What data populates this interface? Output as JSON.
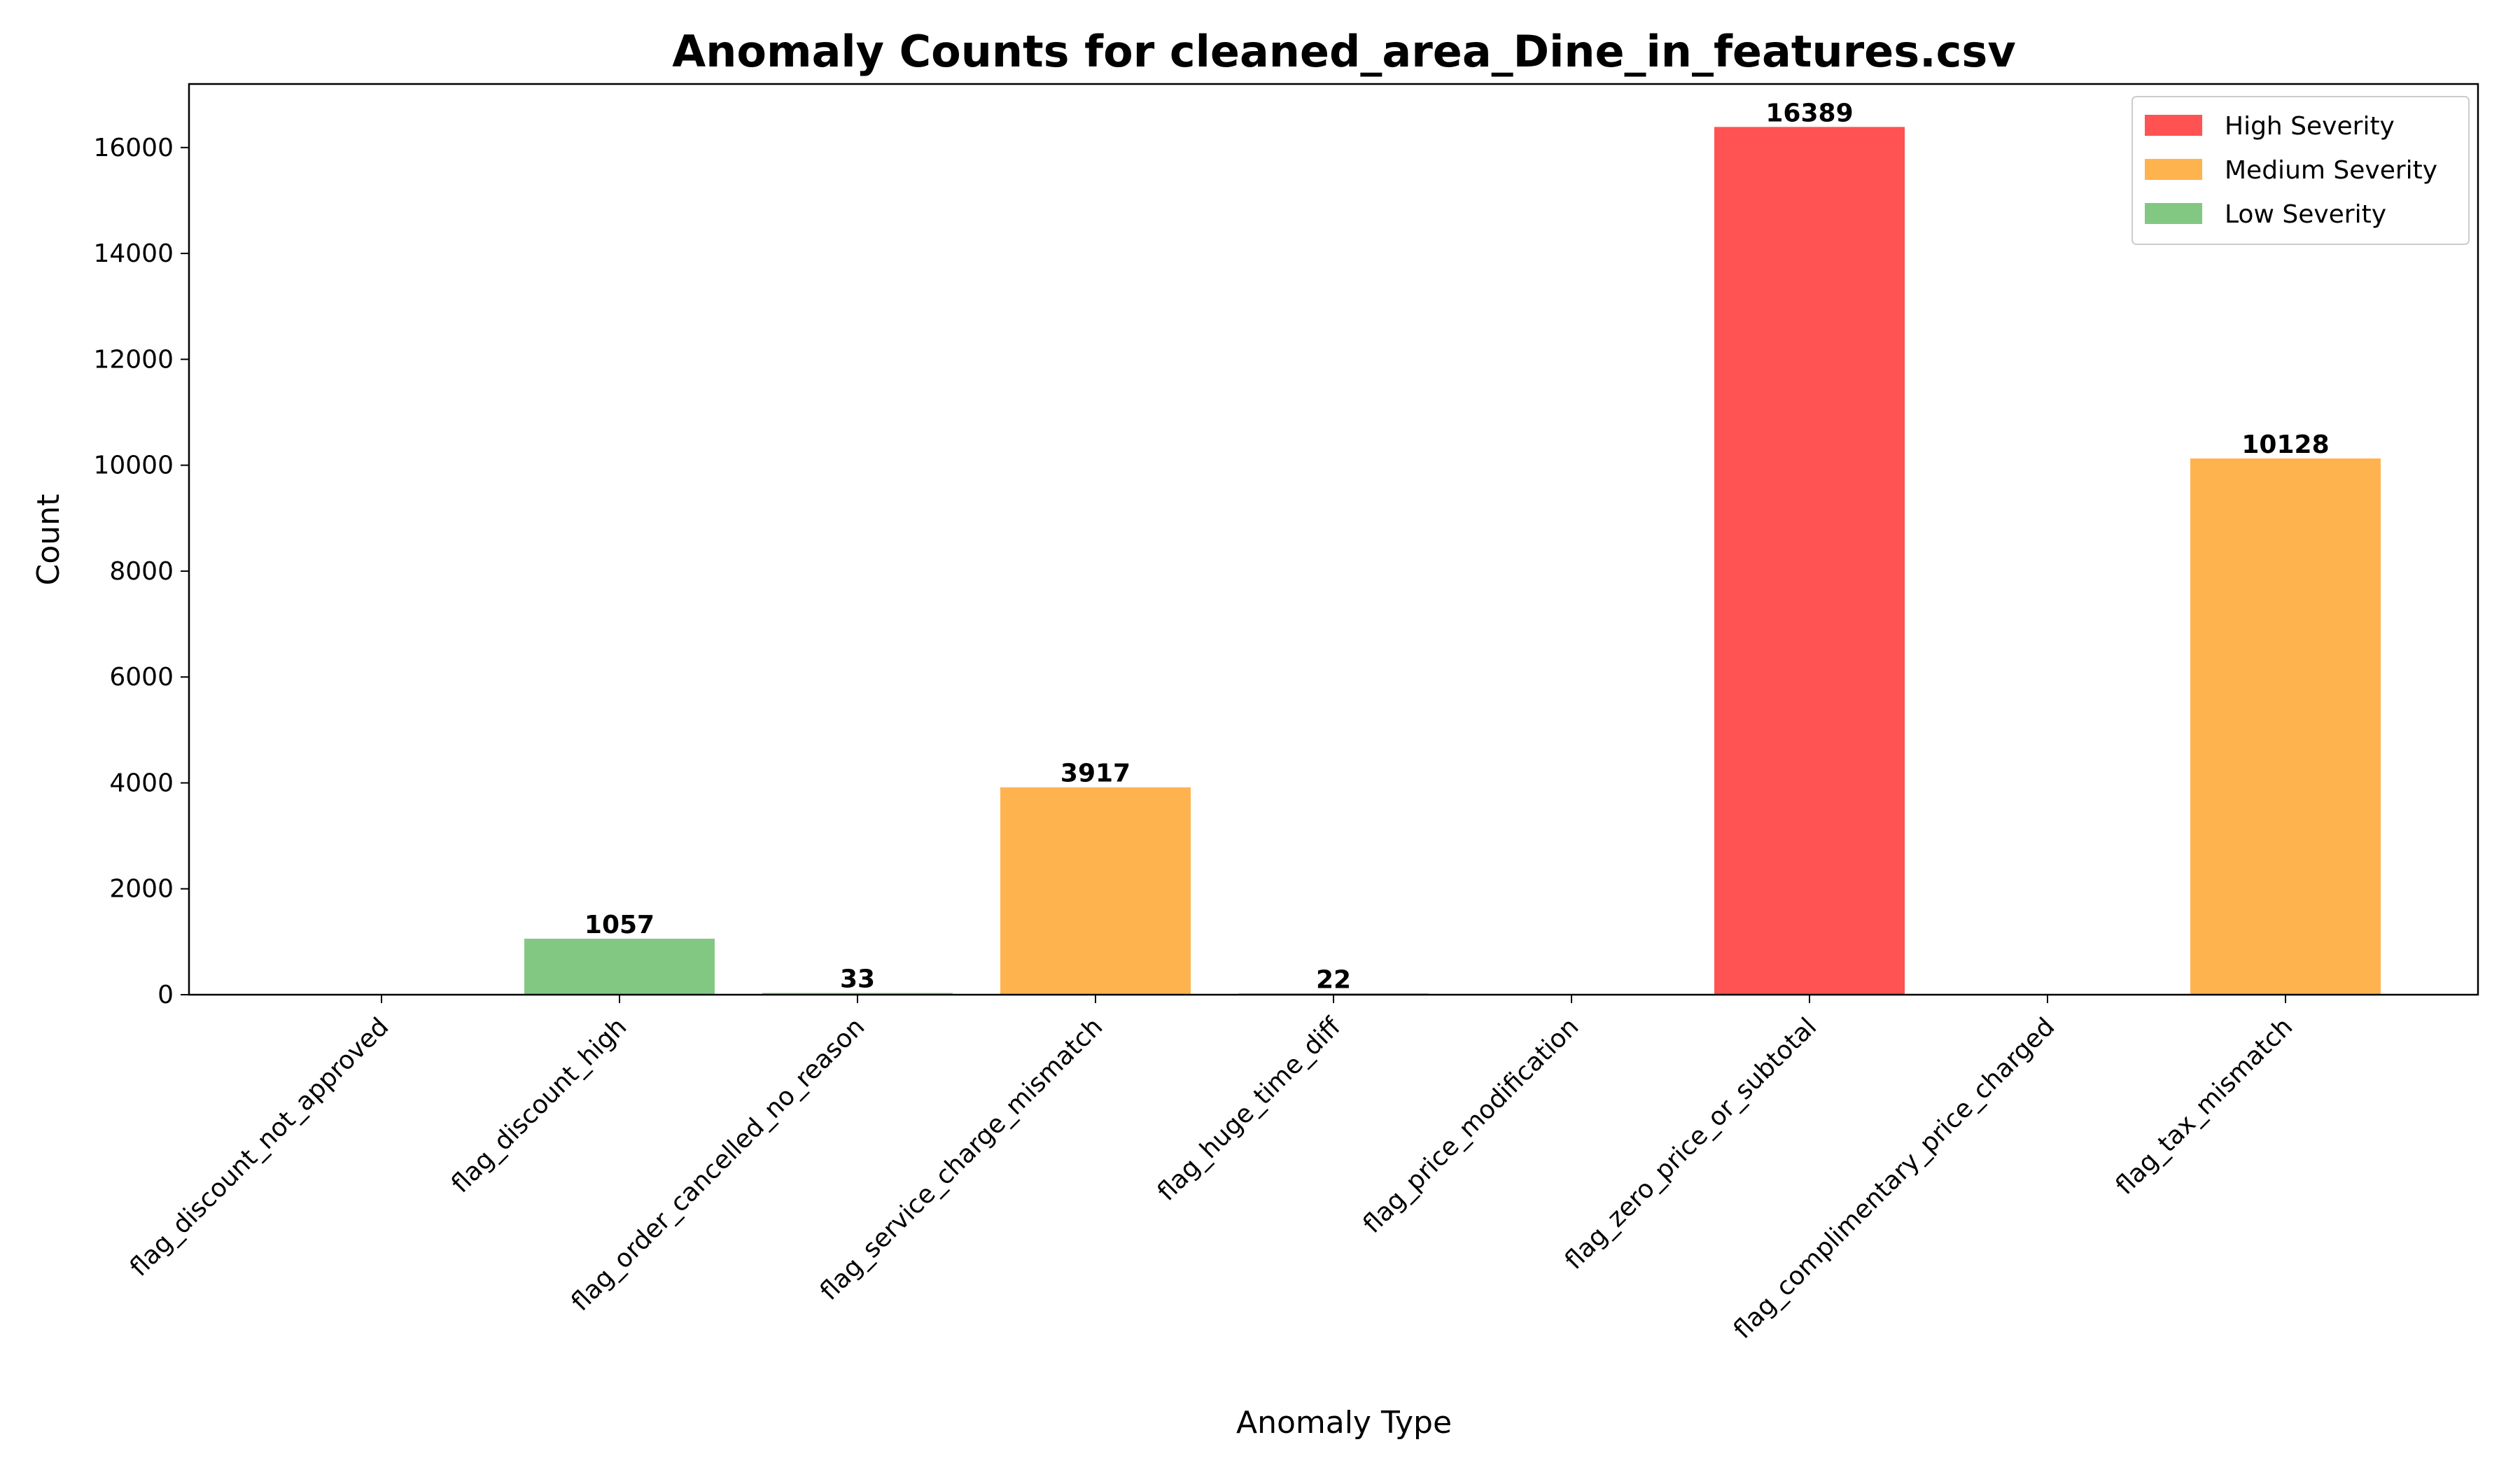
{
  "chart_data": {
    "type": "bar",
    "title": "Anomaly Counts for cleaned_area_Dine_in_features.csv",
    "xlabel": "Anomaly Type",
    "ylabel": "Count",
    "ylim": [
      0,
      17200
    ],
    "yticks": [
      0,
      2000,
      4000,
      6000,
      8000,
      10000,
      12000,
      14000,
      16000
    ],
    "grid": false,
    "legend_position": "top-right",
    "categories": [
      "flag_discount_not_approved",
      "flag_discount_high",
      "flag_order_cancelled_no_reason",
      "flag_service_charge_mismatch",
      "flag_huge_time_diff",
      "flag_price_modification",
      "flag_zero_price_or_subtotal",
      "flag_complimentary_price_charged",
      "flag_tax_mismatch"
    ],
    "values": [
      0,
      1057,
      33,
      3917,
      22,
      0,
      16389,
      0,
      10128
    ],
    "severity": [
      "high",
      "low",
      "low",
      "medium",
      "high",
      "high",
      "high",
      "high",
      "medium"
    ],
    "legend": [
      {
        "key": "high",
        "label": "High Severity",
        "color": "#ff5252"
      },
      {
        "key": "medium",
        "label": "Medium Severity",
        "color": "#ffb34f"
      },
      {
        "key": "low",
        "label": "Low Severity",
        "color": "#82c882"
      }
    ]
  }
}
